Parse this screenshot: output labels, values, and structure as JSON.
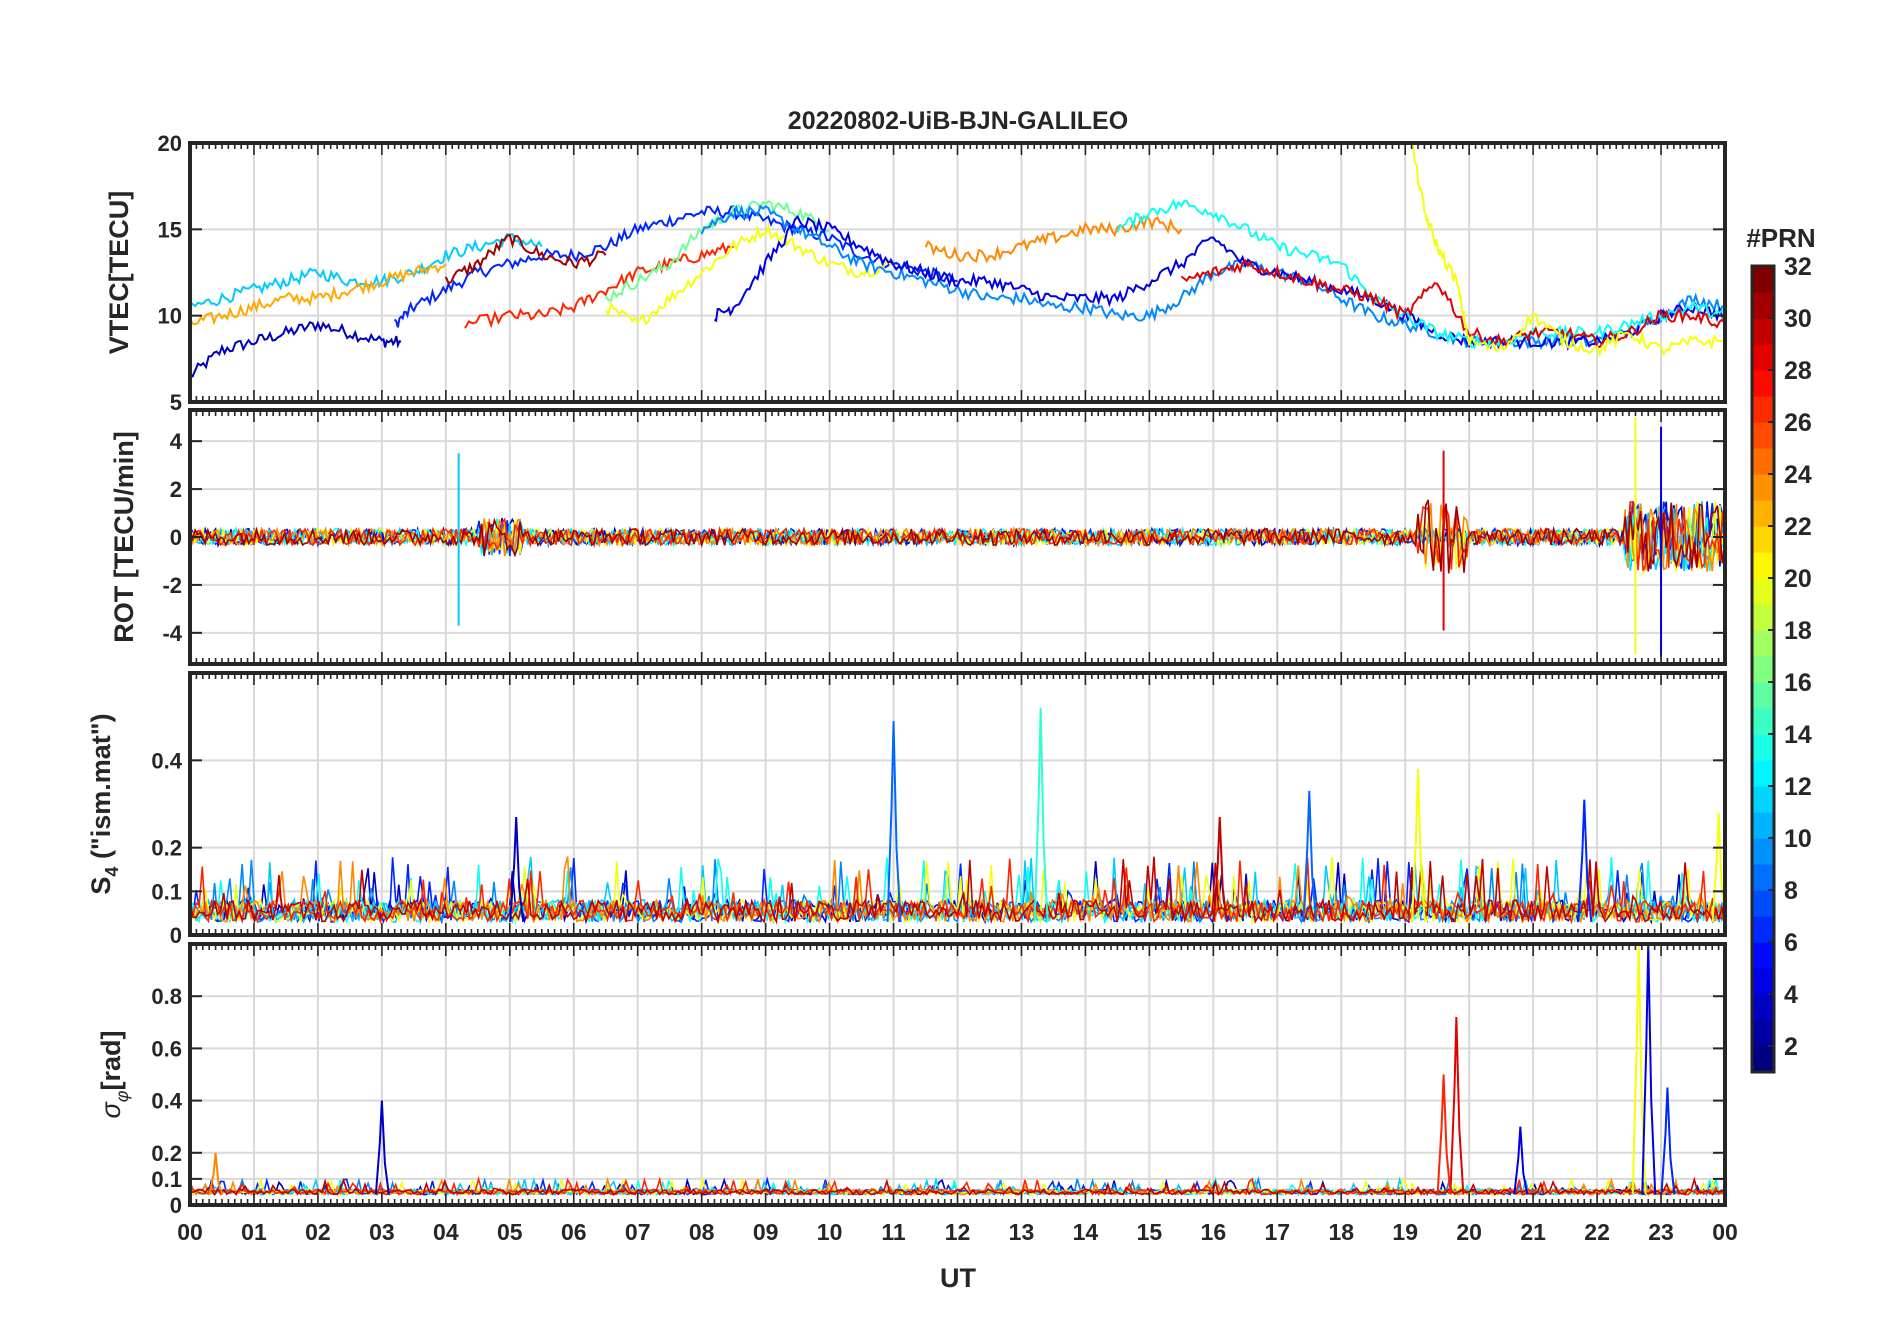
{
  "title": "20220802-UiB-BJN-GALILEO",
  "xlabel": "UT",
  "x_ticks": [
    "00",
    "01",
    "02",
    "03",
    "04",
    "05",
    "06",
    "07",
    "08",
    "09",
    "10",
    "11",
    "12",
    "13",
    "14",
    "15",
    "16",
    "17",
    "18",
    "19",
    "20",
    "21",
    "22",
    "23",
    "00"
  ],
  "colorbar": {
    "label": "#PRN",
    "ticks": [
      "2",
      "4",
      "6",
      "8",
      "10",
      "12",
      "14",
      "16",
      "18",
      "20",
      "22",
      "24",
      "26",
      "28",
      "30",
      "32"
    ],
    "range": [
      1,
      32
    ],
    "colormap": "jet"
  },
  "chart_data": [
    {
      "type": "line",
      "panel": "VTEC",
      "ylabel": "VTEC[TECU]",
      "ylim": [
        5,
        20
      ],
      "y_ticks": [
        "5",
        "10",
        "15",
        "20"
      ],
      "x_unit": "hours UT",
      "xlim": [
        0,
        24
      ],
      "grid": true,
      "series": [
        {
          "prn": 3,
          "x": [
            0,
            0.5,
            1,
            1.5,
            2,
            2.5,
            3,
            3.3
          ],
          "y": [
            6.5,
            8,
            8.5,
            9,
            9.5,
            9,
            8.5,
            8.5
          ]
        },
        {
          "prn": 6,
          "x": [
            3.2,
            3.5,
            4,
            4.5,
            5,
            5.5,
            6,
            6.5,
            7,
            7.5,
            8,
            8.5,
            9,
            9.5,
            10,
            10.5,
            11,
            11.5,
            12
          ],
          "y": [
            9.5,
            10.5,
            11.5,
            12.5,
            13,
            13.5,
            13.5,
            14,
            15,
            15.5,
            16,
            16,
            15.5,
            15,
            14.5,
            13.5,
            13,
            12.5,
            12
          ]
        },
        {
          "prn": 11,
          "x": [
            0,
            0.5,
            1,
            1.5,
            2,
            2.5,
            3,
            3.5,
            4,
            4.5,
            5,
            5.5
          ],
          "y": [
            10.5,
            11,
            11.5,
            12,
            12.5,
            12,
            12,
            12.5,
            13.5,
            14,
            14.5,
            14
          ]
        },
        {
          "prn": 23,
          "x": [
            0,
            0.5,
            1,
            1.5,
            2,
            2.5,
            3,
            3.5,
            4
          ],
          "y": [
            9.5,
            10,
            10.5,
            11,
            11,
            11.5,
            12,
            12.5,
            13
          ]
        },
        {
          "prn": 31,
          "x": [
            4,
            4.5,
            5,
            5.5,
            6,
            6.5
          ],
          "y": [
            12,
            13,
            14.5,
            13.5,
            13,
            13.5
          ]
        },
        {
          "prn": 27,
          "x": [
            4.3,
            5,
            5.5,
            6,
            6.5,
            7,
            7.5,
            8,
            8.5
          ],
          "y": [
            9.5,
            10,
            10,
            10.5,
            11.5,
            12.5,
            13,
            13.5,
            14
          ]
        },
        {
          "prn": 20,
          "x": [
            6.5,
            7,
            7.5,
            8,
            8.5,
            9,
            9.5,
            10,
            10.5,
            11
          ],
          "y": [
            10.5,
            9.5,
            11,
            12.5,
            14,
            15,
            14,
            13,
            12.5,
            13
          ]
        },
        {
          "prn": 16,
          "x": [
            6.5,
            7,
            7.5,
            8,
            8.5,
            9,
            9.5,
            10
          ],
          "y": [
            11,
            12,
            13,
            15,
            16,
            16.5,
            16,
            15
          ]
        },
        {
          "prn": 9,
          "x": [
            8,
            8.5,
            9,
            9.5,
            10,
            10.5,
            11,
            11.5,
            12,
            12.5,
            13,
            13.5,
            14,
            14.5,
            15,
            15.5,
            16,
            16.5,
            17,
            17.5,
            18,
            18.5,
            19,
            19.5,
            20,
            20.5,
            21,
            21.5,
            22,
            22.5,
            23,
            23.5,
            24
          ],
          "y": [
            15,
            16,
            16,
            15,
            14,
            13,
            12.5,
            12,
            11.5,
            11,
            11,
            10.5,
            10.5,
            10,
            10,
            11,
            12.5,
            13,
            12.5,
            12,
            11,
            10,
            9.5,
            9,
            8.5,
            8.5,
            8.5,
            8.5,
            8.5,
            9,
            10,
            11,
            10.5
          ]
        },
        {
          "prn": 4,
          "x": [
            8.2,
            8.5,
            9,
            9.5,
            10,
            10.5,
            11,
            11.5,
            12,
            12.5,
            13,
            13.5,
            14,
            14.5,
            15,
            15.5,
            16,
            16.5,
            17,
            17.5,
            18,
            18.5,
            19,
            19.5,
            20,
            20.5,
            21,
            21.5,
            22,
            22.5,
            23,
            23.5,
            24
          ],
          "y": [
            10,
            10.5,
            13,
            15.5,
            15,
            14,
            13,
            12.5,
            12,
            12,
            11.5,
            11,
            11,
            11,
            12,
            13,
            14.5,
            13,
            12.5,
            12,
            11.5,
            11,
            10,
            9,
            8.5,
            8.5,
            8.5,
            8.5,
            8.5,
            9,
            10,
            10.5,
            10
          ]
        },
        {
          "prn": 24,
          "x": [
            11.5,
            12,
            12.5,
            13,
            13.5,
            14,
            14.5,
            15,
            15.5
          ],
          "y": [
            14,
            13.5,
            13.5,
            14,
            14.5,
            15,
            15,
            15.5,
            15
          ]
        },
        {
          "prn": 13,
          "x": [
            14.5,
            15,
            15.5,
            16,
            16.5,
            17,
            17.5,
            18,
            18.5,
            19,
            19.5,
            20,
            20.5,
            21,
            21.5,
            22,
            22.5,
            23,
            23.5,
            24
          ],
          "y": [
            15,
            16,
            16.5,
            16,
            15,
            14,
            13.5,
            13,
            11,
            10,
            9,
            8.5,
            8.5,
            9,
            9,
            9,
            9.5,
            10,
            10.5,
            10
          ]
        },
        {
          "prn": 29,
          "x": [
            15.5,
            16,
            16.5,
            17,
            17.5,
            18,
            18.5,
            19,
            19.5,
            20,
            20.5,
            21,
            21.5,
            22,
            22.5,
            23,
            23.5,
            24
          ],
          "y": [
            12,
            12.5,
            13,
            12.5,
            12,
            11.5,
            11,
            10,
            12,
            9,
            8.5,
            9,
            9,
            8.5,
            9,
            10,
            10,
            9.5
          ]
        },
        {
          "prn": 20,
          "x": [
            19.1,
            19.3,
            19.5,
            19.8,
            20,
            20.5,
            21,
            21.5,
            22,
            22.5,
            23,
            23.5,
            24
          ],
          "y": [
            20,
            16,
            14,
            12,
            8.5,
            8,
            10,
            8.5,
            8,
            9,
            8,
            8.5,
            8.5
          ]
        }
      ]
    },
    {
      "type": "line",
      "panel": "ROT",
      "ylabel": "ROT [TECU/min]",
      "ylim": [
        -5.3,
        5.3
      ],
      "y_ticks": [
        "-4",
        "-2",
        "0",
        "2",
        "4"
      ],
      "x_unit": "hours UT",
      "xlim": [
        0,
        24
      ],
      "grid": true,
      "series": [
        {
          "prn": 6,
          "x": [
            0,
            2,
            4,
            6,
            8,
            10,
            12,
            14,
            16,
            18,
            19.5,
            21,
            22.5,
            23,
            24
          ],
          "y": [
            0,
            0,
            0,
            0,
            0,
            0,
            0,
            0,
            0,
            0,
            0,
            0,
            0,
            0,
            0
          ]
        }
      ],
      "spikes": [
        {
          "prn": 11,
          "x": 4.2,
          "y": 3.5
        },
        {
          "prn": 11,
          "x": 4.2,
          "y": -3.7
        },
        {
          "prn": 29,
          "x": 19.6,
          "y": 3.6
        },
        {
          "prn": 29,
          "x": 19.6,
          "y": -3.9
        },
        {
          "prn": 20,
          "x": 22.6,
          "y": 5
        },
        {
          "prn": 20,
          "x": 22.6,
          "y": -4.9
        },
        {
          "prn": 4,
          "x": 23.0,
          "y": 4.6
        },
        {
          "prn": 4,
          "x": 23.0,
          "y": -5
        }
      ]
    },
    {
      "type": "line",
      "panel": "S4",
      "ylabel": "S4 (\"ism.mat\")",
      "ylim": [
        0,
        0.6
      ],
      "y_ticks": [
        "0",
        "0.1",
        "0.2",
        "0.4"
      ],
      "x_unit": "hours UT",
      "xlim": [
        0,
        24
      ],
      "grid": true,
      "peaks": [
        {
          "prn": 8,
          "x": 11.0,
          "y": 0.49
        },
        {
          "prn": 14,
          "x": 13.3,
          "y": 0.52
        },
        {
          "prn": 20,
          "x": 19.2,
          "y": 0.38
        },
        {
          "prn": 8,
          "x": 17.5,
          "y": 0.33
        },
        {
          "prn": 6,
          "x": 21.8,
          "y": 0.31
        },
        {
          "prn": 3,
          "x": 5.1,
          "y": 0.27
        },
        {
          "prn": 30,
          "x": 16.1,
          "y": 0.27
        },
        {
          "prn": 20,
          "x": 23.9,
          "y": 0.28
        }
      ]
    },
    {
      "type": "line",
      "panel": "sigma_phi",
      "ylabel": "[rad]",
      "ylim": [
        0,
        1.0
      ],
      "y_ticks": [
        "0",
        "0.1",
        "0.2",
        "0.4",
        "0.6",
        "0.8"
      ],
      "x_unit": "hours UT",
      "xlim": [
        0,
        24
      ],
      "grid": true,
      "peaks": [
        {
          "prn": 3,
          "x": 3.0,
          "y": 0.4
        },
        {
          "prn": 24,
          "x": 0.4,
          "y": 0.2
        },
        {
          "prn": 29,
          "x": 19.8,
          "y": 0.72
        },
        {
          "prn": 27,
          "x": 19.6,
          "y": 0.5
        },
        {
          "prn": 4,
          "x": 20.8,
          "y": 0.3
        },
        {
          "prn": 20,
          "x": 22.65,
          "y": 1.0
        },
        {
          "prn": 4,
          "x": 22.8,
          "y": 1.0
        },
        {
          "prn": 6,
          "x": 23.1,
          "y": 0.45
        }
      ]
    }
  ]
}
